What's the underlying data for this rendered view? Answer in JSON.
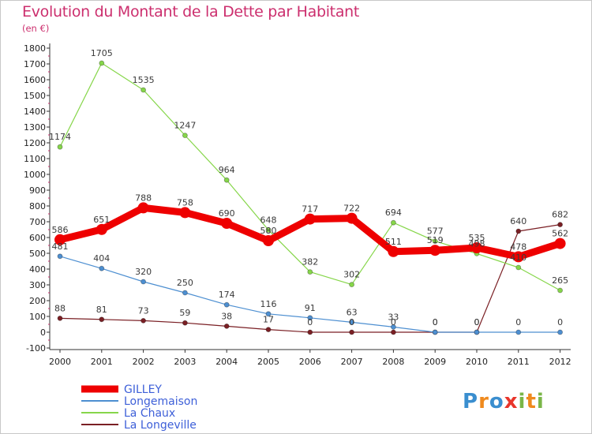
{
  "header": {
    "title": "Evolution du Montant de la Dette par Habitant",
    "subtitle": "(en €)"
  },
  "brand": {
    "text": "Proxiti",
    "colors": [
      "#3a8ecf",
      "#ef8a1e",
      "#3a8ecf",
      "#e8352b",
      "#7ab648",
      "#ef8a1e",
      "#7ab648"
    ]
  },
  "chart_data": {
    "type": "line",
    "title": "Evolution du Montant de la Dette par Habitant",
    "subtitle": "(en €)",
    "x": [
      "2000",
      "2001",
      "2002",
      "2003",
      "2004",
      "2005",
      "2006",
      "2007",
      "2008",
      "2009",
      "2010",
      "2011",
      "2012"
    ],
    "ylim": [
      -100,
      1800
    ],
    "yticks": [
      "-100",
      "0",
      "100",
      "200",
      "300",
      "400",
      "500",
      "600",
      "700",
      "800",
      "900",
      "1000",
      "1100",
      "1200",
      "1300",
      "1400",
      "1500",
      "1600",
      "1700",
      "1800"
    ],
    "grid": false,
    "legend_position": "bottom-left",
    "series": [
      {
        "name": "La Longeville",
        "color": "#7a1f24",
        "values": [
          88,
          81,
          73,
          59,
          38,
          17,
          0,
          0,
          0,
          0,
          0,
          640,
          682
        ],
        "labels": [
          "88",
          "81",
          "73",
          "59",
          "38",
          "17",
          "0",
          "0",
          "0",
          "0",
          "0",
          "640",
          "682"
        ]
      },
      {
        "name": "Longemaison",
        "color": "#4d8fd1",
        "values": [
          481,
          404,
          320,
          250,
          174,
          116,
          91,
          63,
          33,
          0,
          0,
          0,
          0
        ],
        "labels": [
          "481",
          "404",
          "320",
          "250",
          "174",
          "116",
          "91",
          "63",
          "33",
          "0",
          "0",
          "0",
          "0"
        ]
      },
      {
        "name": "La Chaux",
        "color": "#86d64a",
        "values": [
          1174,
          1705,
          1535,
          1247,
          964,
          648,
          382,
          302,
          694,
          577,
          498,
          410,
          265
        ],
        "labels": [
          "1174",
          "1705",
          "1535",
          "1247",
          "964",
          "648",
          "382",
          "302",
          "694",
          "577",
          "498",
          "410",
          "265"
        ]
      },
      {
        "name": "GILLEY",
        "color": "#ee0000",
        "values": [
          586,
          651,
          788,
          758,
          690,
          580,
          717,
          722,
          511,
          519,
          535,
          478,
          562
        ],
        "labels": [
          "586",
          "651",
          "788",
          "758",
          "690",
          "580",
          "717",
          "722",
          "511",
          "519",
          "535",
          "478",
          "562"
        ]
      }
    ],
    "legend_order": [
      "GILLEY",
      "Longemaison",
      "La Chaux",
      "La Longeville"
    ]
  }
}
